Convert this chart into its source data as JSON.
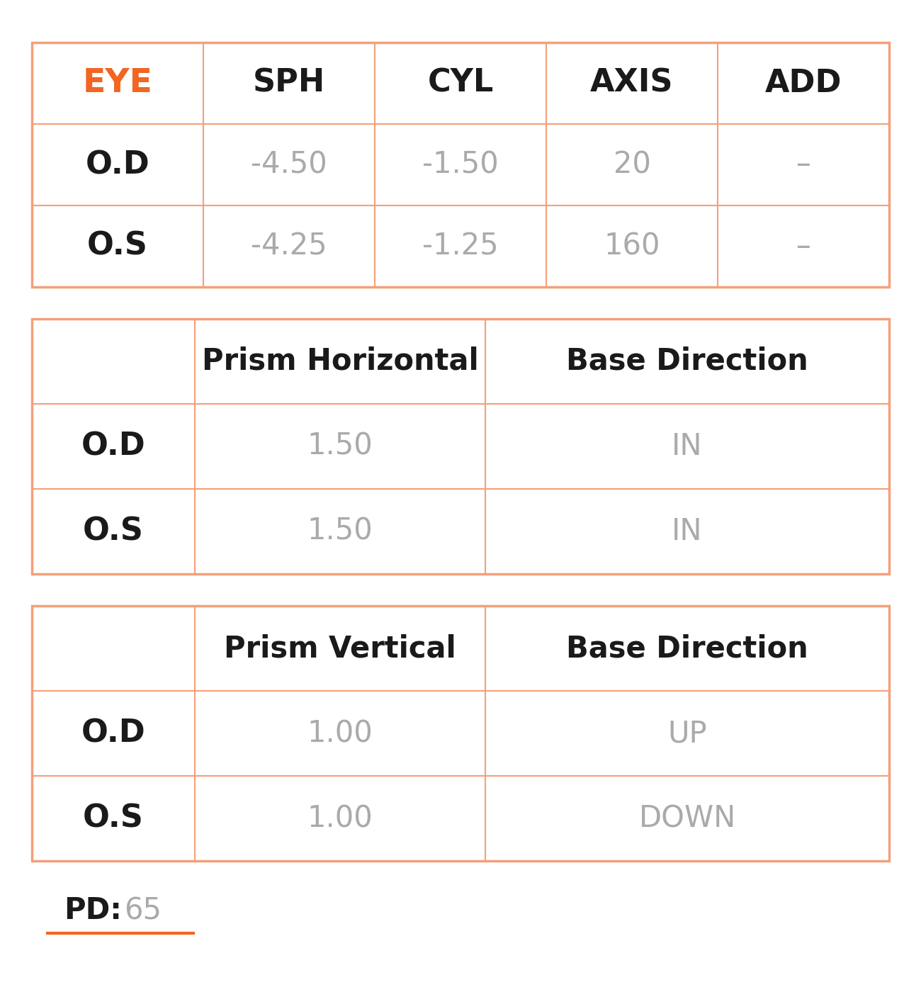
{
  "background_color": "#ffffff",
  "border_color": "#f4a07a",
  "orange_color": "#f26522",
  "dark_text": "#1a1a1a",
  "gray_text": "#aaaaaa",
  "table1": {
    "headers": [
      "EYE",
      "SPH",
      "CYL",
      "AXIS",
      "ADD"
    ],
    "rows": [
      [
        "O.D",
        "-4.50",
        "-1.50",
        "20",
        "–"
      ],
      [
        "O.S",
        "-4.25",
        "-1.25",
        "160",
        "–"
      ]
    ]
  },
  "table2": {
    "headers": [
      "",
      "Prism Horizontal",
      "Base Direction"
    ],
    "rows": [
      [
        "O.D",
        "1.50",
        "IN"
      ],
      [
        "O.S",
        "1.50",
        "IN"
      ]
    ]
  },
  "table3": {
    "headers": [
      "",
      "Prism Vertical",
      "Base Direction"
    ],
    "rows": [
      [
        "O.D",
        "1.00",
        "UP"
      ],
      [
        "O.S",
        "1.00",
        "DOWN"
      ]
    ]
  },
  "pd_label": "PD:",
  "pd_value": "65",
  "figsize": [
    13.0,
    14.0
  ],
  "dpi": 100
}
